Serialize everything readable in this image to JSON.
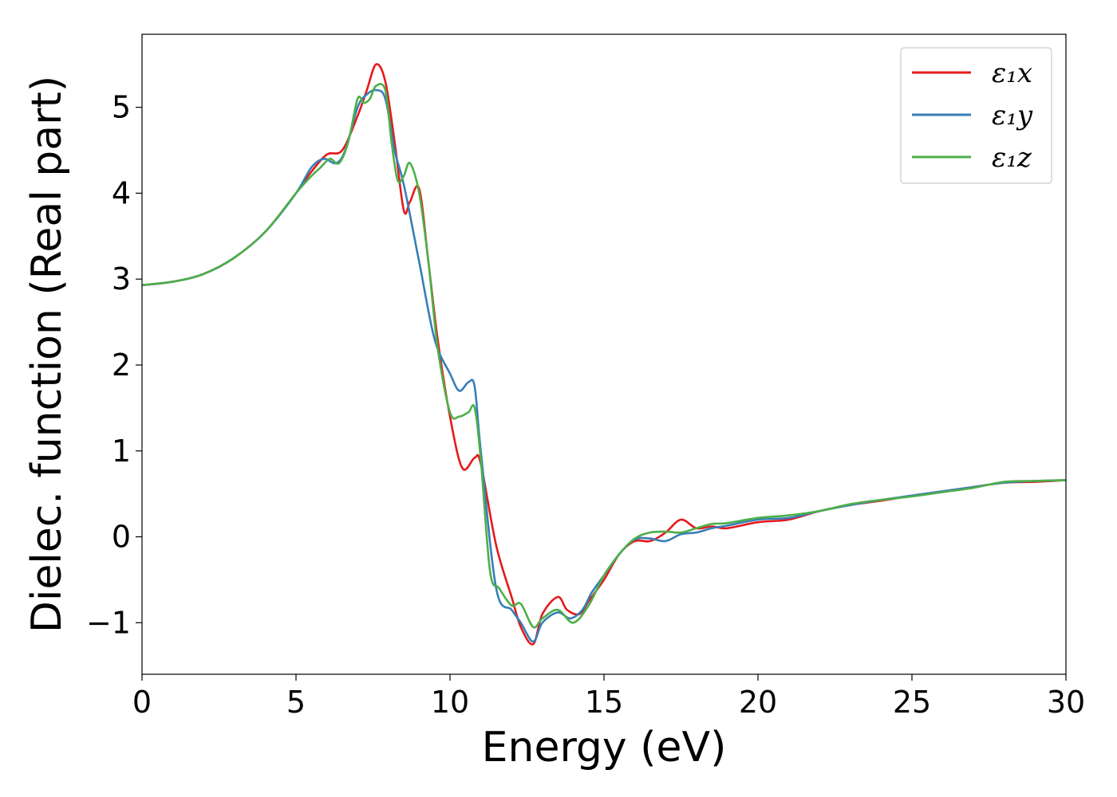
{
  "chart_data": {
    "type": "line",
    "title": "",
    "xlabel": "Energy (eV)",
    "ylabel": "Dielec. function (Real part)",
    "xlim": [
      0,
      30
    ],
    "ylim": [
      -1.6,
      5.85
    ],
    "xticks": [
      0,
      5,
      10,
      15,
      20,
      25,
      30
    ],
    "yticks": [
      -1,
      0,
      1,
      2,
      3,
      4,
      5
    ],
    "xtick_labels": [
      "0",
      "5",
      "10",
      "15",
      "20",
      "25",
      "30"
    ],
    "ytick_labels": [
      "−1",
      "0",
      "1",
      "2",
      "3",
      "4",
      "5"
    ],
    "grid": false,
    "legend_position": "top-right",
    "series": [
      {
        "name": "ε₁x",
        "color": "#e41a1c",
        "x": [
          0,
          1,
          2,
          3,
          4,
          5,
          5.5,
          6,
          6.5,
          7,
          7.3,
          7.6,
          7.9,
          8.2,
          8.5,
          8.7,
          9.0,
          9.3,
          9.6,
          10.0,
          10.4,
          10.8,
          11.0,
          11.5,
          12.0,
          12.3,
          12.7,
          13.0,
          13.5,
          13.8,
          14.2,
          14.5,
          15.0,
          15.5,
          16.0,
          16.5,
          17.0,
          17.5,
          18.0,
          18.5,
          19.0,
          20.0,
          21.0,
          22.0,
          23.0,
          24.0,
          25.0,
          26.0,
          27.0,
          28.0,
          29.0,
          30.0
        ],
        "y": [
          2.93,
          2.97,
          3.06,
          3.25,
          3.55,
          4.0,
          4.25,
          4.45,
          4.5,
          4.9,
          5.2,
          5.5,
          5.3,
          4.6,
          3.8,
          3.9,
          4.05,
          3.2,
          2.3,
          1.4,
          0.8,
          0.92,
          0.85,
          -0.1,
          -0.7,
          -1.05,
          -1.25,
          -0.9,
          -0.7,
          -0.85,
          -0.9,
          -0.75,
          -0.5,
          -0.2,
          -0.05,
          -0.05,
          0.05,
          0.2,
          0.1,
          0.12,
          0.1,
          0.17,
          0.2,
          0.3,
          0.37,
          0.42,
          0.48,
          0.53,
          0.58,
          0.63,
          0.64,
          0.66
        ]
      },
      {
        "name": "ε₁y",
        "color": "#377eb8",
        "x": [
          0,
          1,
          2,
          3,
          4,
          5,
          5.5,
          5.9,
          6.3,
          6.6,
          7.0,
          7.3,
          7.6,
          7.9,
          8.2,
          8.5,
          9.0,
          9.5,
          10.0,
          10.3,
          10.6,
          10.8,
          11.0,
          11.5,
          12.0,
          12.3,
          12.7,
          13.0,
          13.5,
          13.9,
          14.3,
          14.6,
          15.0,
          15.5,
          16.0,
          16.5,
          17.0,
          17.5,
          18.0,
          18.5,
          19.0,
          20.0,
          21.0,
          22.0,
          23.0,
          24.0,
          25.0,
          26.0,
          27.0,
          28.0,
          29.0,
          30.0
        ],
        "y": [
          2.93,
          2.97,
          3.06,
          3.25,
          3.55,
          4.0,
          4.3,
          4.4,
          4.35,
          4.5,
          5.0,
          5.15,
          5.2,
          5.1,
          4.5,
          4.1,
          3.2,
          2.3,
          1.9,
          1.7,
          1.8,
          1.75,
          1.0,
          -0.6,
          -0.85,
          -1.0,
          -1.22,
          -1.0,
          -0.88,
          -0.95,
          -0.85,
          -0.65,
          -0.45,
          -0.2,
          -0.03,
          -0.02,
          -0.05,
          0.03,
          0.05,
          0.1,
          0.13,
          0.2,
          0.22,
          0.3,
          0.37,
          0.43,
          0.48,
          0.53,
          0.58,
          0.63,
          0.65,
          0.66
        ]
      },
      {
        "name": "ε₁z",
        "color": "#4daf4a",
        "x": [
          0,
          1,
          2,
          3,
          4,
          5,
          5.5,
          5.8,
          6.1,
          6.4,
          6.7,
          7.0,
          7.2,
          7.4,
          7.6,
          7.9,
          8.1,
          8.3,
          8.5,
          8.7,
          9.0,
          9.3,
          9.6,
          10.0,
          10.3,
          10.6,
          10.8,
          11.0,
          11.3,
          11.6,
          12.0,
          12.3,
          12.7,
          13.0,
          13.5,
          14.0,
          14.5,
          15.0,
          15.5,
          16.0,
          16.5,
          17.0,
          17.5,
          18.0,
          18.5,
          19.0,
          20.0,
          21.0,
          22.0,
          23.0,
          24.0,
          25.0,
          26.0,
          27.0,
          28.0,
          29.0,
          30.0
        ],
        "y": [
          2.93,
          2.97,
          3.06,
          3.25,
          3.55,
          4.0,
          4.2,
          4.3,
          4.4,
          4.35,
          4.6,
          5.1,
          5.05,
          5.1,
          5.25,
          5.2,
          4.6,
          4.15,
          4.2,
          4.35,
          4.0,
          3.2,
          2.2,
          1.45,
          1.4,
          1.45,
          1.5,
          0.9,
          -0.4,
          -0.6,
          -0.8,
          -0.78,
          -1.05,
          -0.95,
          -0.85,
          -1.0,
          -0.8,
          -0.45,
          -0.2,
          -0.02,
          0.05,
          0.06,
          0.05,
          0.1,
          0.15,
          0.16,
          0.22,
          0.25,
          0.3,
          0.38,
          0.43,
          0.47,
          0.52,
          0.57,
          0.64,
          0.65,
          0.66
        ]
      }
    ]
  }
}
